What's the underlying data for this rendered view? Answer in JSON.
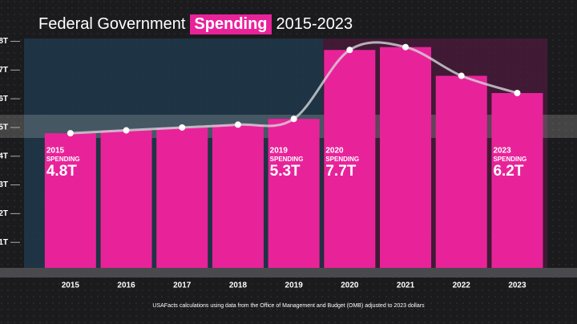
{
  "chart_data": {
    "type": "bar",
    "title": "Federal Government",
    "title_highlight": "Spending",
    "title_suffix": "2015-2023",
    "categories": [
      "2015",
      "2016",
      "2017",
      "2018",
      "2019",
      "2020",
      "2021",
      "2022",
      "2023"
    ],
    "values": [
      4.8,
      4.9,
      5.0,
      5.1,
      5.3,
      7.7,
      7.8,
      6.8,
      6.2
    ],
    "value_labels": [
      "4.8T",
      null,
      null,
      null,
      "5.3T",
      "7.7T",
      null,
      null,
      "6.2T"
    ],
    "annotation_label": "SPENDING",
    "color": "#e8239a",
    "line_color": "#d4d4d8",
    "ylim": [
      0,
      8.2
    ],
    "yticks": [
      {
        "value": 1,
        "label": "1T"
      },
      {
        "value": 2,
        "label": "2T"
      },
      {
        "value": 3,
        "label": "3T"
      },
      {
        "value": 4,
        "label": "4T"
      },
      {
        "value": 5,
        "label": "5T"
      },
      {
        "value": 6,
        "label": "6T"
      },
      {
        "value": 7,
        "label": "7T"
      },
      {
        "value": 8,
        "label": "8T"
      }
    ],
    "footnote": "USAFacts calculations using data from the Office of Management and Budget (OMB) adjusted to 2023 dollars"
  }
}
